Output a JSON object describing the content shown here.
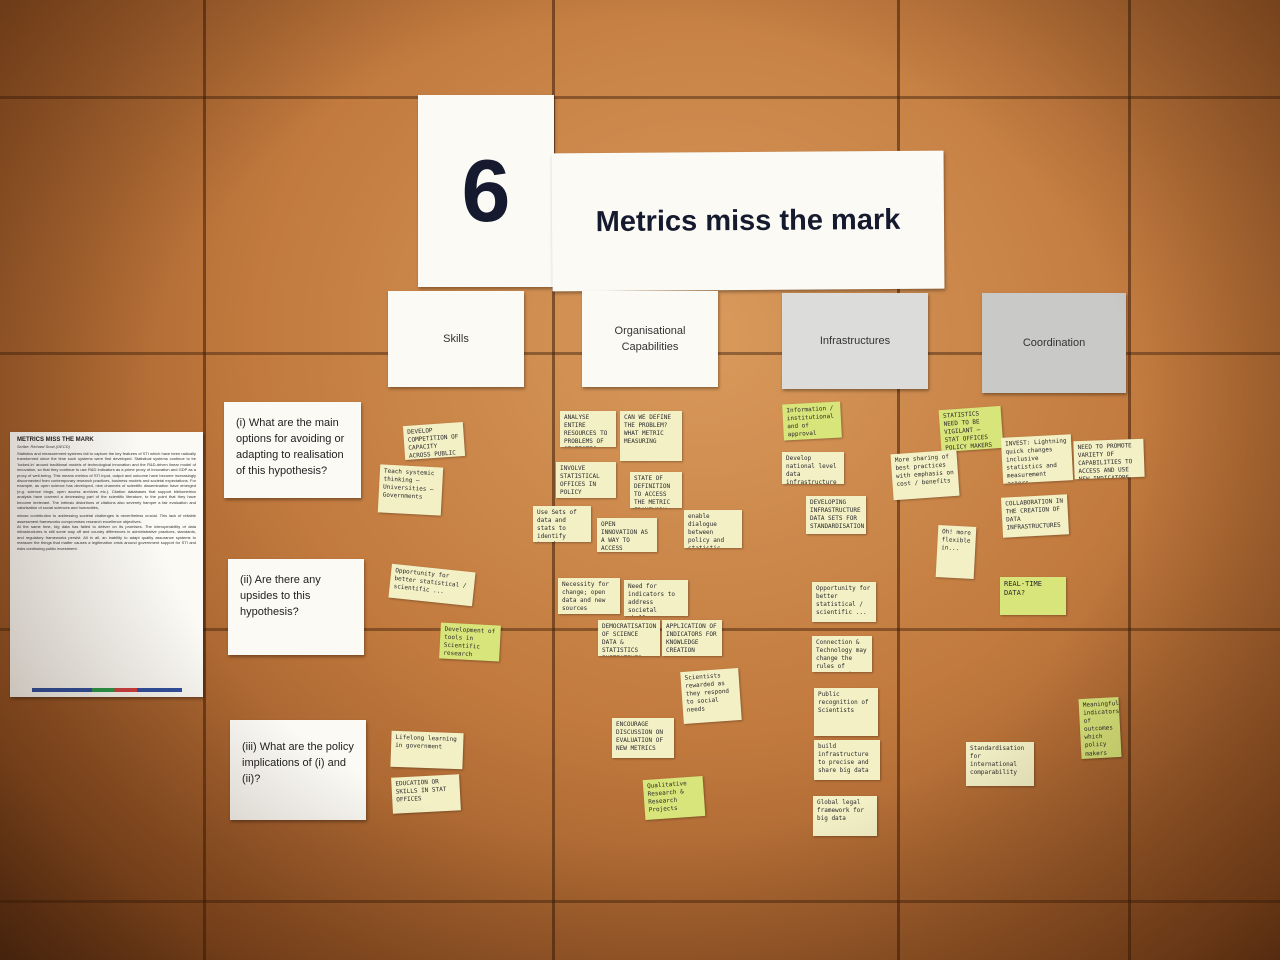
{
  "title_number": "6",
  "title_text": "Metrics miss the mark",
  "columns": [
    "Skills",
    "Organisational\nCapabilities",
    "Infrastructures",
    "Coordination"
  ],
  "questions": [
    "(i) What are the main options for avoiding or adapting to realisation of this hypothesis?",
    "(ii) Are there any upsides to this hypothesis?",
    "(iii) What are the policy implications of (i) and (ii)?"
  ],
  "summary": {
    "heading": "METRICS MISS THE MARK",
    "scribe": "Scribe: Richard Scott (OECD)",
    "paragraphs": [
      "Statistics and measurement systems fail to capture the key features of STI which have been radically transformed since the time such systems were first developed. Statistical systems continue to be 'locked-in' around traditional models of technological innovation and the R&D-driven linear model of innovation, so that they continue to use R&D indicators as a prime proxy of innovation and GDP as a proxy of well-being. This means metrics of STI input, output and outcome have become increasingly disconnected from contemporary research practices, business models and societal expectations. For example, as open science has developed, new channels of scientific dissemination have emerged (e.g. science blogs, open access archives etc.). Citation databases that support bibliometrics analysis have covered a decreasing part of the scientific literature, to the point that they have become irrelevant. The intrinsic distortions of citations also severely hamper a fair evaluation and valorisation of social sciences and humanities,",
      "whose contribution to addressing societal challenges is nevertheless crucial. This lack of reliable assessment frameworks compromises research excellence objectives.",
      "At the same time, big data has failed to deliver on its promises. The interoperability of data infrastructures is still some way off and country differences in administrative practices, standards, and regulatory frameworks persist. All in all, an inability to adapt quality assurance systems to measure the things that matter causes a legitimation crisis around government support for STI and risks continuing public investment."
    ]
  },
  "sticky_notes": [
    "DEVELOP COMPETITION OF CAPACITY ACROSS PUBLIC",
    "Teach systemic thinking — Universities — Governments",
    "ANALYSE ENTIRE RESOURCES TO PROBLEMS OF STATISTIC DATA",
    "CAN WE DEFINE THE PROBLEM? WHAT METRIC MEASURING",
    "INVOLVE STATISTICAL OFFICES IN POLICY",
    "STATE OF DEFINITION TO ACCESS THE METRIC FRAMEWORK",
    "OPEN INNOVATION AS A WAY TO ACCESS INDICATORS",
    "Use Sets of data and stats to identify trends",
    "enable dialogue between policy and statistic communities",
    "Information / institutional and of approval",
    "Develop national level data infrastructure",
    "DEVELOPING INFRASTRUCTURE DATA SETS FOR STANDARDISATION",
    "STATISTICS NEED TO BE VIGILANT — STAT OFFICES POLICY MAKERS",
    "More sharing of best practices with emphasis on cost / benefits",
    "INVEST: Lightning quick changes inclusive statistics and measurement actors",
    "NEED TO PROMOTE VARIETY OF CAPABILITIES TO ACCESS AND USE NEW INDICATORS",
    "COLLABORATION IN THE CREATION OF DATA INFRASTRUCTURES",
    "Oh! more flexible in...",
    "REAL-TIME DATA?",
    "Opportunity for better statistical / scientific ...",
    "Development of tools in Scientific research",
    "Necessity for change; open data and new sources",
    "Need for indicators to address societal challenges",
    "DEMOCRATISATION OF SCIENCE DATA & STATISTICS INITIATIVES",
    "APPLICATION OF INDICATORS FOR KNOWLEDGE CREATION",
    "Connection & Technology may change the rules of engagement",
    "Scientists rewarded as they respond to social needs",
    "ENCOURAGE DISCUSSION ON EVALUATION OF NEW METRICS",
    "Public recognition of Scientists",
    "build infrastructure to precise and share big data",
    "Standardisation for international comparability",
    "Meaningful indicators of outcomes which policy makers can use",
    "Lifelong learning in government",
    "EDUCATION OR SKILLS IN STAT OFFICES",
    "Qualitative Research & Research Projects",
    "Global legal framework for big data"
  ]
}
